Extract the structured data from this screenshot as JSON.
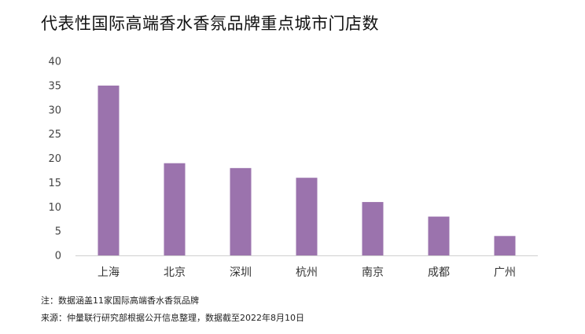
{
  "title": "代表性国际高端香水香氛品牌重点城市门店数",
  "footnotes": {
    "note": "注：数据涵盖11家国际高端香水香氛品牌",
    "source": "来源：仲量联行研究部根据公开信息整理，数据截至2022年8月10日"
  },
  "colors": {
    "bar": "#9b73ad",
    "axis": "#d0d0d0"
  },
  "chart_data": {
    "type": "bar",
    "categories": [
      "上海",
      "北京",
      "深圳",
      "杭州",
      "南京",
      "成都",
      "广州"
    ],
    "values": [
      35,
      19,
      18,
      16,
      11,
      8,
      4
    ],
    "yticks": [
      0,
      5,
      10,
      15,
      20,
      25,
      30,
      35,
      40
    ],
    "ylim": [
      0,
      40
    ],
    "grid": false,
    "legend": "none"
  }
}
